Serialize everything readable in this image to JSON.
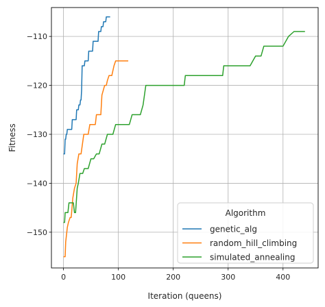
{
  "chart_data": {
    "type": "line",
    "title": "",
    "xlabel": "Iteration (queens)",
    "ylabel": "Fitness",
    "xlim": [
      -22,
      464
    ],
    "ylim": [
      -157.3,
      -104.1
    ],
    "xticks": [
      0,
      100,
      200,
      300,
      400
    ],
    "yticks": [
      -110,
      -120,
      -130,
      -140,
      -150
    ],
    "xtick_labels": [
      "0",
      "100",
      "200",
      "300",
      "400"
    ],
    "ytick_labels": [
      "−110",
      "−120",
      "−130",
      "−140",
      "−150"
    ],
    "grid": true,
    "legend": {
      "title": "Algorithm",
      "placement": "lower-right"
    },
    "series": [
      {
        "name": "genetic_alg",
        "color": "#1f77b4",
        "x": [
          0,
          2,
          3,
          4,
          5,
          6,
          7,
          8,
          9,
          10,
          11,
          12,
          13,
          14,
          15,
          16,
          17,
          18,
          19,
          20,
          21,
          22,
          23,
          24,
          25,
          26,
          27,
          28,
          29,
          30,
          31,
          32,
          33,
          34,
          35,
          36,
          37,
          38,
          39,
          40,
          41,
          42,
          43,
          44,
          45,
          46,
          47,
          48,
          49,
          50,
          51,
          52,
          53,
          54,
          55,
          56,
          57,
          58,
          59,
          60,
          61,
          62,
          63,
          64,
          65,
          66,
          67,
          68,
          69,
          70,
          71,
          72,
          73,
          74,
          75,
          76,
          77,
          78,
          79,
          80,
          81,
          82,
          83,
          84,
          85
        ],
        "y": [
          -134,
          -134,
          -131,
          -131,
          -130,
          -130,
          -129,
          -129,
          -129,
          -129,
          -129,
          -129,
          -129,
          -129,
          -129,
          -127,
          -127,
          -127,
          -127,
          -127,
          -127,
          -127,
          -127,
          -125,
          -125,
          -125,
          -125,
          -124,
          -124,
          -124,
          -123,
          -123,
          -121,
          -116,
          -116,
          -116,
          -116,
          -116,
          -115,
          -115,
          -115,
          -115,
          -115,
          -115,
          -115,
          -113,
          -113,
          -113,
          -113,
          -113,
          -113,
          -113,
          -113,
          -111,
          -111,
          -111,
          -111,
          -111,
          -111,
          -111,
          -111,
          -111,
          -111,
          -109,
          -109,
          -109,
          -109,
          -109,
          -108,
          -108,
          -108,
          -108,
          -107,
          -107,
          -107,
          -107,
          -107,
          -106,
          -106,
          -106,
          -106,
          -106,
          -106,
          -106,
          -106
        ]
      },
      {
        "name": "random_hill_climbing",
        "color": "#ff7f0e",
        "x": [
          0,
          3,
          4,
          5,
          7,
          9,
          12,
          14,
          17,
          20,
          23,
          25,
          28,
          32,
          37,
          40,
          42,
          45,
          48,
          52,
          55,
          58,
          60,
          63,
          66,
          68,
          70,
          75,
          78,
          80,
          83,
          88,
          92,
          95,
          100,
          105,
          110,
          115,
          118
        ],
        "y": [
          -155,
          -155,
          -152,
          -151,
          -149,
          -148,
          -147,
          -147,
          -143,
          -141,
          -140,
          -136,
          -134,
          -134,
          -130,
          -130,
          -130,
          -130,
          -128,
          -128,
          -128,
          -128,
          -126,
          -126,
          -126,
          -126,
          -122,
          -120,
          -120,
          -119,
          -118,
          -118,
          -116,
          -115,
          -115,
          -115,
          -115,
          -115,
          -115
        ]
      },
      {
        "name": "simulated_annealing",
        "color": "#2ca02c",
        "x": [
          0,
          1,
          2,
          3,
          5,
          8,
          10,
          13,
          15,
          18,
          20,
          22,
          25,
          27,
          30,
          33,
          35,
          38,
          40,
          42,
          45,
          50,
          55,
          60,
          65,
          70,
          75,
          80,
          85,
          90,
          95,
          100,
          105,
          110,
          115,
          120,
          125,
          130,
          135,
          140,
          145,
          150,
          160,
          180,
          200,
          220,
          222,
          230,
          250,
          270,
          290,
          292,
          300,
          320,
          340,
          350,
          360,
          365,
          380,
          400,
          410,
          420,
          440
        ],
        "y": [
          -148,
          -148,
          -148,
          -146,
          -146,
          -146,
          -144,
          -144,
          -144,
          -144,
          -146,
          -146,
          -141,
          -140,
          -138,
          -138,
          -138,
          -137,
          -137,
          -137,
          -137,
          -135,
          -135,
          -134,
          -134,
          -132,
          -132,
          -130,
          -130,
          -130,
          -128,
          -128,
          -128,
          -128,
          -128,
          -128,
          -126,
          -126,
          -126,
          -126,
          -124,
          -120,
          -120,
          -120,
          -120,
          -120,
          -118,
          -118,
          -118,
          -118,
          -118,
          -116,
          -116,
          -116,
          -116,
          -114,
          -114,
          -112,
          -112,
          -112,
          -110,
          -109,
          -109
        ]
      }
    ]
  }
}
